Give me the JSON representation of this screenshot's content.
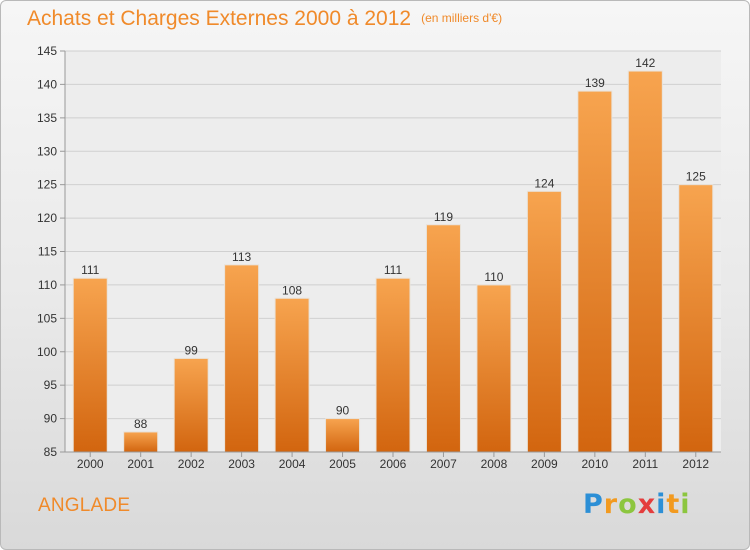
{
  "header": {
    "title": "Achats et Charges Externes 2000 à 2012",
    "unit": "(en milliers d'€)"
  },
  "footer": {
    "commune": "ANGLADE",
    "brand_letters": [
      "P",
      "r",
      "o",
      "x",
      "i",
      "t",
      "i"
    ],
    "brand_colors": [
      "#2c8fd6",
      "#f29a1f",
      "#8cc63f",
      "#e43d3d",
      "#2c8fd6",
      "#f29a1f",
      "#8cc63f"
    ]
  },
  "colors": {
    "bar_top": "#f7a44f",
    "bar_bottom": "#d2650f",
    "grid": "#d0d0d0",
    "axis": "#999999",
    "title": "#f08a2a"
  },
  "chart_data": {
    "type": "bar",
    "title": "Achats et Charges Externes 2000 à 2012",
    "subtitle": "(en milliers d'€)",
    "categories": [
      "2000",
      "2001",
      "2002",
      "2003",
      "2004",
      "2005",
      "2006",
      "2007",
      "2008",
      "2009",
      "2010",
      "2011",
      "2012"
    ],
    "values": [
      111,
      88,
      99,
      113,
      108,
      90,
      111,
      119,
      110,
      124,
      139,
      142,
      125
    ],
    "ylim": [
      85,
      145
    ],
    "yticks": [
      85,
      90,
      95,
      100,
      105,
      110,
      115,
      120,
      125,
      130,
      135,
      140,
      145
    ],
    "grid": true,
    "legend": "none",
    "data_labels": true
  }
}
